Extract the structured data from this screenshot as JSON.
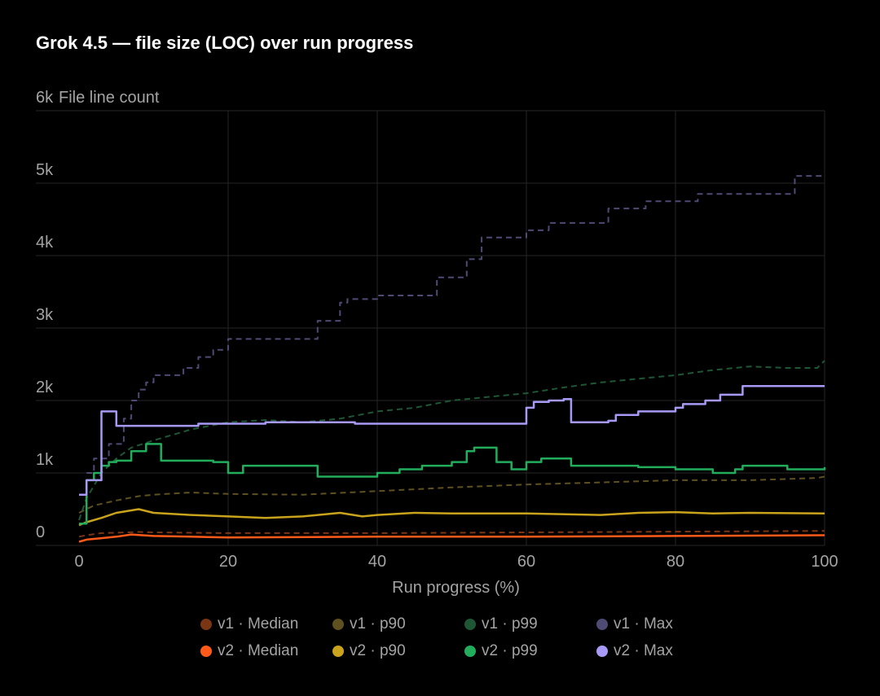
{
  "title": "Grok 4.5 — file size (LOC) over run progress",
  "chart_data": {
    "type": "line",
    "title": "Grok 4.5 — file size (LOC) over run progress",
    "xlabel": "Run progress (%)",
    "ylabel": "File line count",
    "xlim": [
      0,
      100
    ],
    "ylim": [
      0,
      6000
    ],
    "x_ticks": [
      0,
      20,
      40,
      60,
      80,
      100
    ],
    "y_ticks": [
      0,
      1000,
      2000,
      3000,
      4000,
      5000,
      6000
    ],
    "y_tick_labels": [
      "0",
      "1k",
      "2k",
      "3k",
      "4k",
      "5k",
      "6k"
    ],
    "grid": true,
    "legend_position": "bottom",
    "series": [
      {
        "name": "v1 · Median",
        "color": "#7a3515",
        "dashed": true,
        "step": false,
        "points": [
          [
            0,
            120
          ],
          [
            1,
            140
          ],
          [
            3,
            170
          ],
          [
            5,
            175
          ],
          [
            8,
            185
          ],
          [
            10,
            180
          ],
          [
            20,
            170
          ],
          [
            40,
            170
          ],
          [
            60,
            180
          ],
          [
            80,
            190
          ],
          [
            100,
            200
          ]
        ]
      },
      {
        "name": "v1 · p90",
        "color": "#5e5020",
        "dashed": true,
        "step": false,
        "points": [
          [
            0,
            450
          ],
          [
            2,
            550
          ],
          [
            5,
            620
          ],
          [
            8,
            680
          ],
          [
            10,
            700
          ],
          [
            15,
            730
          ],
          [
            20,
            710
          ],
          [
            30,
            700
          ],
          [
            40,
            750
          ],
          [
            50,
            800
          ],
          [
            60,
            840
          ],
          [
            70,
            870
          ],
          [
            80,
            900
          ],
          [
            90,
            900
          ],
          [
            99,
            930
          ],
          [
            100,
            950
          ]
        ]
      },
      {
        "name": "v1 · p99",
        "color": "#1f5735",
        "dashed": true,
        "step": false,
        "points": [
          [
            0,
            350
          ],
          [
            1,
            650
          ],
          [
            3,
            1000
          ],
          [
            5,
            1200
          ],
          [
            7,
            1350
          ],
          [
            10,
            1450
          ],
          [
            15,
            1600
          ],
          [
            20,
            1700
          ],
          [
            25,
            1730
          ],
          [
            30,
            1700
          ],
          [
            35,
            1750
          ],
          [
            40,
            1850
          ],
          [
            45,
            1900
          ],
          [
            50,
            2000
          ],
          [
            55,
            2050
          ],
          [
            60,
            2100
          ],
          [
            65,
            2180
          ],
          [
            70,
            2250
          ],
          [
            75,
            2300
          ],
          [
            80,
            2350
          ],
          [
            85,
            2420
          ],
          [
            90,
            2470
          ],
          [
            95,
            2450
          ],
          [
            99,
            2450
          ],
          [
            100,
            2550
          ]
        ]
      },
      {
        "name": "v1 · Max",
        "color": "#4d4a73",
        "dashed": true,
        "step": true,
        "points": [
          [
            1,
            1000
          ],
          [
            2,
            1200
          ],
          [
            4,
            1400
          ],
          [
            6,
            1750
          ],
          [
            7,
            2000
          ],
          [
            8,
            2150
          ],
          [
            9,
            2250
          ],
          [
            10,
            2350
          ],
          [
            14,
            2450
          ],
          [
            16,
            2600
          ],
          [
            18,
            2700
          ],
          [
            20,
            2850
          ],
          [
            32,
            3100
          ],
          [
            35,
            3350
          ],
          [
            36,
            3400
          ],
          [
            40,
            3450
          ],
          [
            48,
            3700
          ],
          [
            52,
            3950
          ],
          [
            54,
            4250
          ],
          [
            60,
            4350
          ],
          [
            63,
            4450
          ],
          [
            71,
            4650
          ],
          [
            76,
            4750
          ],
          [
            83,
            4850
          ],
          [
            96,
            5100
          ],
          [
            100,
            5100
          ]
        ]
      },
      {
        "name": "v2 · Median",
        "color": "#ff5a1a",
        "dashed": false,
        "step": false,
        "points": [
          [
            0,
            50
          ],
          [
            1,
            80
          ],
          [
            3,
            100
          ],
          [
            5,
            120
          ],
          [
            7,
            150
          ],
          [
            10,
            130
          ],
          [
            15,
            120
          ],
          [
            20,
            110
          ],
          [
            40,
            120
          ],
          [
            60,
            120
          ],
          [
            80,
            130
          ],
          [
            100,
            140
          ]
        ]
      },
      {
        "name": "v2 · p90",
        "color": "#c9a31c",
        "dashed": false,
        "step": false,
        "points": [
          [
            0,
            280
          ],
          [
            1,
            320
          ],
          [
            3,
            380
          ],
          [
            5,
            450
          ],
          [
            8,
            500
          ],
          [
            10,
            450
          ],
          [
            15,
            420
          ],
          [
            20,
            400
          ],
          [
            25,
            380
          ],
          [
            30,
            400
          ],
          [
            35,
            450
          ],
          [
            38,
            400
          ],
          [
            40,
            420
          ],
          [
            45,
            450
          ],
          [
            50,
            440
          ],
          [
            60,
            440
          ],
          [
            70,
            420
          ],
          [
            75,
            450
          ],
          [
            80,
            460
          ],
          [
            85,
            440
          ],
          [
            90,
            450
          ],
          [
            100,
            440
          ]
        ]
      },
      {
        "name": "v2 · p99",
        "color": "#22ad5c",
        "dashed": false,
        "step": true,
        "points": [
          [
            0,
            300
          ],
          [
            1,
            900
          ],
          [
            2,
            1000
          ],
          [
            3,
            1100
          ],
          [
            4,
            1150
          ],
          [
            5,
            1170
          ],
          [
            7,
            1300
          ],
          [
            9,
            1400
          ],
          [
            11,
            1170
          ],
          [
            18,
            1150
          ],
          [
            20,
            1000
          ],
          [
            22,
            1100
          ],
          [
            28,
            1100
          ],
          [
            32,
            950
          ],
          [
            40,
            1000
          ],
          [
            43,
            1050
          ],
          [
            46,
            1100
          ],
          [
            50,
            1150
          ],
          [
            52,
            1300
          ],
          [
            53,
            1350
          ],
          [
            56,
            1150
          ],
          [
            58,
            1050
          ],
          [
            60,
            1150
          ],
          [
            62,
            1200
          ],
          [
            66,
            1100
          ],
          [
            75,
            1080
          ],
          [
            80,
            1050
          ],
          [
            85,
            1000
          ],
          [
            88,
            1050
          ],
          [
            89,
            1100
          ],
          [
            95,
            1050
          ],
          [
            100,
            1080
          ]
        ]
      },
      {
        "name": "v2 · Max",
        "color": "#a79af7",
        "dashed": false,
        "step": true,
        "points": [
          [
            0,
            700
          ],
          [
            1,
            900
          ],
          [
            3,
            1850
          ],
          [
            5,
            1650
          ],
          [
            16,
            1680
          ],
          [
            25,
            1700
          ],
          [
            30,
            1700
          ],
          [
            36,
            1700
          ],
          [
            37,
            1680
          ],
          [
            41,
            1680
          ],
          [
            59,
            1680
          ],
          [
            60,
            1900
          ],
          [
            61,
            1980
          ],
          [
            63,
            2000
          ],
          [
            65,
            2020
          ],
          [
            66,
            1700
          ],
          [
            71,
            1720
          ],
          [
            72,
            1800
          ],
          [
            75,
            1850
          ],
          [
            80,
            1900
          ],
          [
            81,
            1950
          ],
          [
            84,
            2000
          ],
          [
            86,
            2080
          ],
          [
            89,
            2200
          ],
          [
            100,
            2200
          ]
        ]
      }
    ]
  }
}
